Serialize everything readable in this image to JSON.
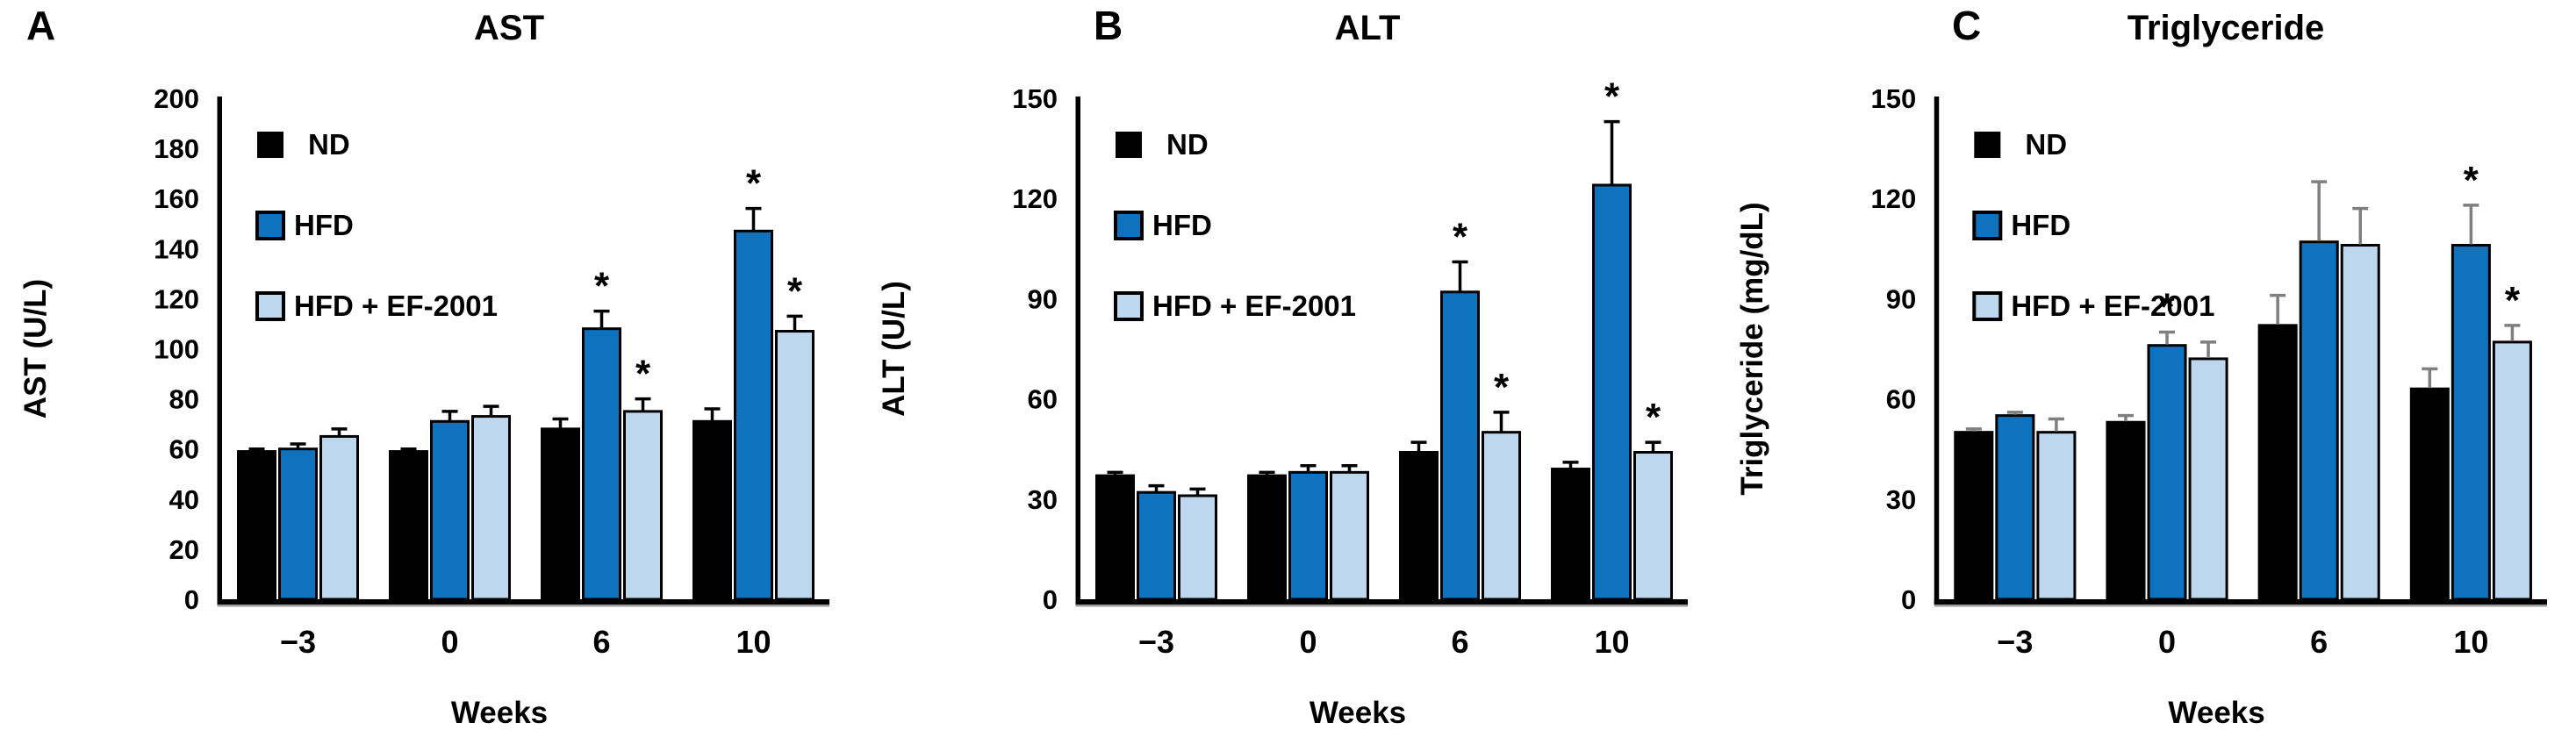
{
  "figure_caption_letters": [
    "A",
    "B",
    "C"
  ],
  "legend_labels": [
    "ND",
    "HFD",
    "HFD + EF-2001"
  ],
  "colors": {
    "nd_bar": "#000000",
    "hfd_bar": "#0F72BF",
    "hfd_ef2001_bar": "#BDD7EE",
    "bar_outline": "#000000",
    "error_bar_ab": "#000000",
    "error_bar_c": "#7F7F7F",
    "background": "#FFFFFF"
  },
  "chart_data": [
    {
      "type": "bar",
      "panel_label": "A",
      "title": "AST",
      "x_label": "Weeks",
      "y_label": "AST (U/L)",
      "ylim": [
        0,
        200
      ],
      "yticks": [
        0,
        20,
        40,
        60,
        80,
        100,
        120,
        140,
        160,
        180,
        200
      ],
      "categories": [
        "−3",
        "0",
        "6",
        "10"
      ],
      "sig_marker": "*",
      "error_bar_color": "#000000",
      "legend_position": "top-left-inside",
      "series": [
        {
          "name": "ND",
          "color": "#000000",
          "values": [
            59,
            59,
            68,
            71
          ],
          "errors": [
            1,
            1,
            4,
            5
          ],
          "significant": [
            false,
            false,
            false,
            false
          ]
        },
        {
          "name": "HFD",
          "color": "#0F72BF",
          "values": [
            60,
            71,
            108,
            147
          ],
          "errors": [
            2,
            4,
            7,
            9
          ],
          "significant": [
            false,
            false,
            true,
            true
          ]
        },
        {
          "name": "HFD + EF-2001",
          "color": "#BDD7EE",
          "values": [
            65,
            73,
            75,
            107
          ],
          "errors": [
            3,
            4,
            5,
            6
          ],
          "significant": [
            false,
            false,
            true,
            true
          ]
        }
      ]
    },
    {
      "type": "bar",
      "panel_label": "B",
      "title": "ALT",
      "x_label": "Weeks",
      "y_label": "ALT (U/L)",
      "ylim": [
        0,
        150
      ],
      "yticks": [
        0,
        30,
        60,
        90,
        120,
        150
      ],
      "categories": [
        "−3",
        "0",
        "6",
        "10"
      ],
      "sig_marker": "*",
      "error_bar_color": "#000000",
      "legend_position": "top-left-inside",
      "series": [
        {
          "name": "ND",
          "color": "#000000",
          "values": [
            37,
            37,
            44,
            39
          ],
          "errors": [
            1,
            1,
            3,
            2
          ],
          "significant": [
            false,
            false,
            false,
            false
          ]
        },
        {
          "name": "HFD",
          "color": "#0F72BF",
          "values": [
            32,
            38,
            92,
            124
          ],
          "errors": [
            2,
            2,
            9,
            19
          ],
          "significant": [
            false,
            false,
            true,
            true
          ]
        },
        {
          "name": "HFD + EF-2001",
          "color": "#BDD7EE",
          "values": [
            31,
            38,
            50,
            44
          ],
          "errors": [
            2,
            2,
            6,
            3
          ],
          "significant": [
            false,
            false,
            true,
            true
          ]
        }
      ]
    },
    {
      "type": "bar",
      "panel_label": "C",
      "title": "Triglyceride",
      "x_label": "Weeks",
      "y_label": "Triglyceride (mg/dL)",
      "ylim": [
        0,
        150
      ],
      "yticks": [
        0,
        30,
        60,
        90,
        120,
        150
      ],
      "categories": [
        "−3",
        "0",
        "6",
        "10"
      ],
      "sig_marker": "*",
      "error_bar_color": "#7F7F7F",
      "legend_position": "top-left-inside",
      "series": [
        {
          "name": "ND",
          "color": "#000000",
          "values": [
            50,
            53,
            82,
            63
          ],
          "errors": [
            1,
            2,
            9,
            6
          ],
          "significant": [
            false,
            false,
            false,
            false
          ]
        },
        {
          "name": "HFD",
          "color": "#0F72BF",
          "values": [
            55,
            76,
            107,
            106
          ],
          "errors": [
            1,
            4,
            18,
            12
          ],
          "significant": [
            false,
            true,
            false,
            true
          ]
        },
        {
          "name": "HFD + EF-2001",
          "color": "#BDD7EE",
          "values": [
            50,
            72,
            106,
            77
          ],
          "errors": [
            4,
            5,
            11,
            5
          ],
          "significant": [
            false,
            false,
            false,
            true
          ]
        }
      ]
    }
  ]
}
